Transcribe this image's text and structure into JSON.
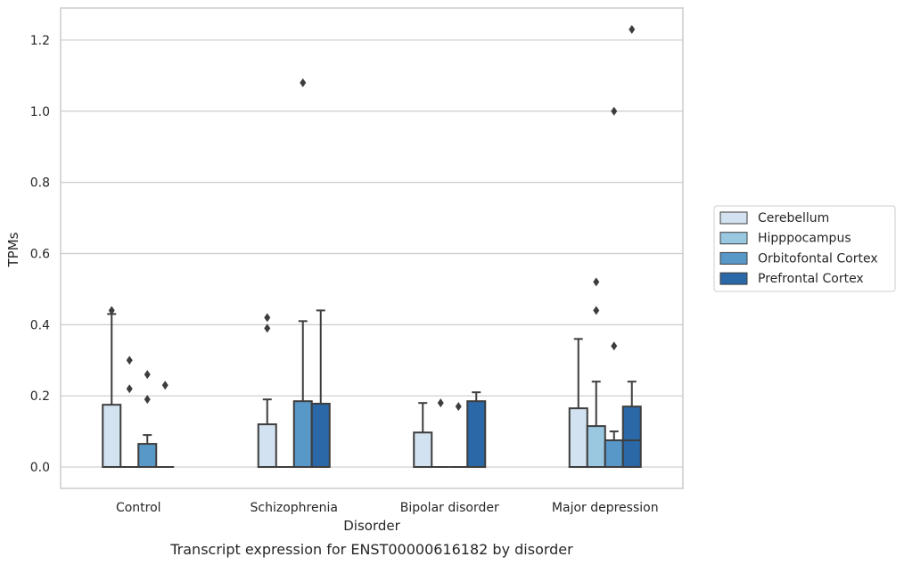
{
  "caption": "Transcript expression for ENST00000616182 by disorder",
  "chart_data": {
    "type": "box",
    "title": "",
    "xlabel": "Disorder",
    "ylabel": "TPMs",
    "ylim": [
      -0.06,
      1.29
    ],
    "yticks": [
      0.0,
      0.2,
      0.4,
      0.6,
      0.8,
      1.0,
      1.2
    ],
    "ytick_labels": [
      "0.0",
      "0.2",
      "0.4",
      "0.6",
      "0.8",
      "1.0",
      "1.2"
    ],
    "grid": "horizontal",
    "legend_placement": "right",
    "categories": [
      "Control",
      "Schizophrenia",
      "Bipolar disorder",
      "Major depression"
    ],
    "series": [
      {
        "name": "Cerebellum",
        "color": "#d2e2f1",
        "boxes": [
          {
            "q1": 0.0,
            "median": 0.0,
            "q3": 0.175,
            "whisker_low": 0.0,
            "whisker_high": 0.43,
            "outliers": [
              0.44
            ]
          },
          {
            "q1": 0.0,
            "median": 0.0,
            "q3": 0.12,
            "whisker_low": 0.0,
            "whisker_high": 0.19,
            "outliers": [
              0.39,
              0.42
            ]
          },
          {
            "q1": 0.0,
            "median": 0.0,
            "q3": 0.097,
            "whisker_low": 0.0,
            "whisker_high": 0.18,
            "outliers": []
          },
          {
            "q1": 0.0,
            "median": 0.0,
            "q3": 0.165,
            "whisker_low": 0.0,
            "whisker_high": 0.36,
            "outliers": []
          }
        ]
      },
      {
        "name": "Hipppocampus",
        "color": "#9ac8e0",
        "boxes": [
          {
            "q1": 0.0,
            "median": 0.0,
            "q3": 0.0,
            "whisker_low": 0.0,
            "whisker_high": 0.0,
            "outliers": [
              0.22,
              0.3
            ]
          },
          {
            "q1": 0.0,
            "median": 0.0,
            "q3": 0.0,
            "whisker_low": 0.0,
            "whisker_high": 0.0,
            "outliers": []
          },
          {
            "q1": 0.0,
            "median": 0.0,
            "q3": 0.0,
            "whisker_low": 0.0,
            "whisker_high": 0.0,
            "outliers": [
              0.18
            ]
          },
          {
            "q1": 0.0,
            "median": 0.0,
            "q3": 0.115,
            "whisker_low": 0.0,
            "whisker_high": 0.24,
            "outliers": [
              0.44,
              0.52
            ]
          }
        ]
      },
      {
        "name": "Orbitofontal Cortex",
        "color": "#5898c8",
        "boxes": [
          {
            "q1": 0.0,
            "median": 0.0,
            "q3": 0.065,
            "whisker_low": 0.0,
            "whisker_high": 0.09,
            "outliers": [
              0.19,
              0.26
            ]
          },
          {
            "q1": 0.0,
            "median": 0.0,
            "q3": 0.185,
            "whisker_low": 0.0,
            "whisker_high": 0.41,
            "outliers": [
              1.08
            ]
          },
          {
            "q1": 0.0,
            "median": 0.0,
            "q3": 0.0,
            "whisker_low": 0.0,
            "whisker_high": 0.0,
            "outliers": [
              0.17
            ]
          },
          {
            "q1": 0.0,
            "median": 0.0,
            "q3": 0.075,
            "whisker_low": 0.0,
            "whisker_high": 0.1,
            "outliers": [
              0.34,
              1.0
            ]
          }
        ]
      },
      {
        "name": "Prefrontal Cortex",
        "color": "#2a68a8",
        "boxes": [
          {
            "q1": 0.0,
            "median": 0.0,
            "q3": 0.0,
            "whisker_low": 0.0,
            "whisker_high": 0.0,
            "outliers": [
              0.23
            ]
          },
          {
            "q1": 0.0,
            "median": 0.0,
            "q3": 0.178,
            "whisker_low": 0.0,
            "whisker_high": 0.44,
            "outliers": []
          },
          {
            "q1": 0.0,
            "median": 0.0,
            "q3": 0.185,
            "whisker_low": 0.0,
            "whisker_high": 0.21,
            "outliers": []
          },
          {
            "q1": 0.0,
            "median": 0.075,
            "q3": 0.17,
            "whisker_low": 0.0,
            "whisker_high": 0.24,
            "outliers": [
              1.23
            ]
          }
        ]
      }
    ]
  }
}
